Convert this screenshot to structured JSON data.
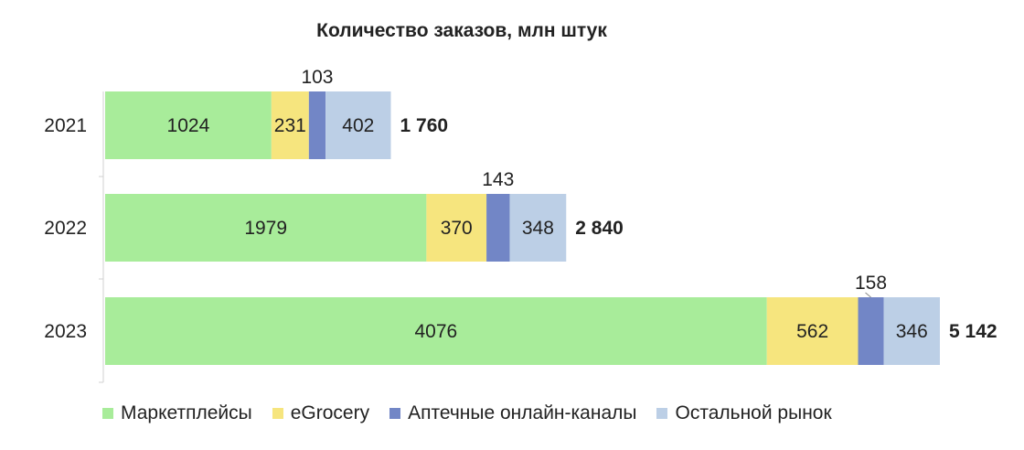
{
  "chart_data": {
    "type": "bar",
    "orientation": "horizontal",
    "stacked": true,
    "title": "Количество заказов, млн штук",
    "categories": [
      "2021",
      "2022",
      "2023"
    ],
    "series": [
      {
        "name": "Маркетплейсы",
        "values": [
          1024,
          1979,
          4076
        ],
        "color": "#a8ec9a"
      },
      {
        "name": "eGrocery",
        "values": [
          231,
          370,
          562
        ],
        "color": "#f6e57e"
      },
      {
        "name": "Аптечные онлайн-каналы",
        "values": [
          103,
          143,
          158
        ],
        "color": "#7286c6"
      },
      {
        "name": "Остальной рынок",
        "values": [
          402,
          348,
          346
        ],
        "color": "#bccfe6"
      }
    ],
    "totals": [
      "1 760",
      "2 840",
      "5 142"
    ],
    "xlim": [
      0,
      5200
    ],
    "grid": false,
    "legend_position": "bottom"
  }
}
